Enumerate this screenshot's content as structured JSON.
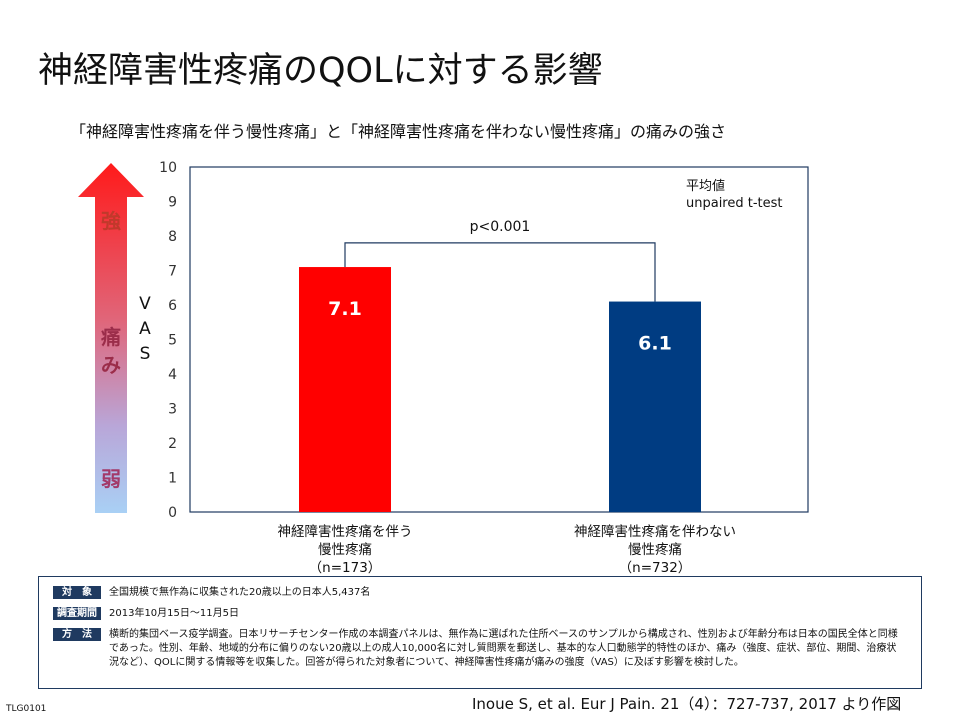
{
  "header": {
    "title": "神経障害性疼痛のQOLに対する影響",
    "subtitle": "「神経障害性疼痛を伴う慢性疼痛」と「神経障害性疼痛を伴わない慢性疼痛」の痛みの強さ"
  },
  "intensity_arrow": {
    "top_label": "強",
    "middle_label_1": "痛",
    "middle_label_2": "み",
    "bottom_label": "弱",
    "top_color": "#ff1a1a",
    "bottom_color": "#a9d0f5"
  },
  "vas_label": [
    "V",
    "A",
    "S"
  ],
  "chart_data": {
    "type": "bar",
    "categories": [
      [
        "神経障害性疼痛を伴う",
        "慢性疼痛",
        "（n=173）"
      ],
      [
        "神経障害性疼痛を伴わない",
        "慢性疼痛",
        "（n=732）"
      ]
    ],
    "values": [
      7.1,
      6.1
    ],
    "value_labels": [
      "7.1",
      "6.1"
    ],
    "colors": [
      "#ff0000",
      "#003c82"
    ],
    "ylim": [
      0,
      10
    ],
    "yticks": [
      0,
      1,
      2,
      3,
      4,
      5,
      6,
      7,
      8,
      9,
      10
    ],
    "note_lines": [
      "平均値",
      "unpaired t-test"
    ],
    "significance": "p<0.001",
    "grid": false
  },
  "methods": [
    {
      "label": "対　象",
      "text": "全国規模で無作為に収集された20歳以上の日本人5,437名"
    },
    {
      "label": "調査期間",
      "text": "2013年10月15日～11月5日"
    },
    {
      "label": "方　法",
      "text": "横断的集団ベース疫学調査。日本リサーチセンター作成の本調査パネルは、無作為に選ばれた住所ベースのサンプルから構成され、性別および年齢分布は日本の国民全体と同様であった。性別、年齢、地域的分布に偏りのない20歳以上の成人10,000名に対し質問票を郵送し、基本的な人口動態学的特性のほか、痛み（強度、症状、部位、期間、治療状況など）、QOLに関する情報等を収集した。回答が得られた対象者について、神経障害性疼痛が痛みの強度（VAS）に及ぼす影響を検討した。"
    }
  ],
  "footer": {
    "code": "TLG0101",
    "citation": "Inoue S, et al. Eur J Pain. 21（4）：727-737, 2017 より作図"
  }
}
